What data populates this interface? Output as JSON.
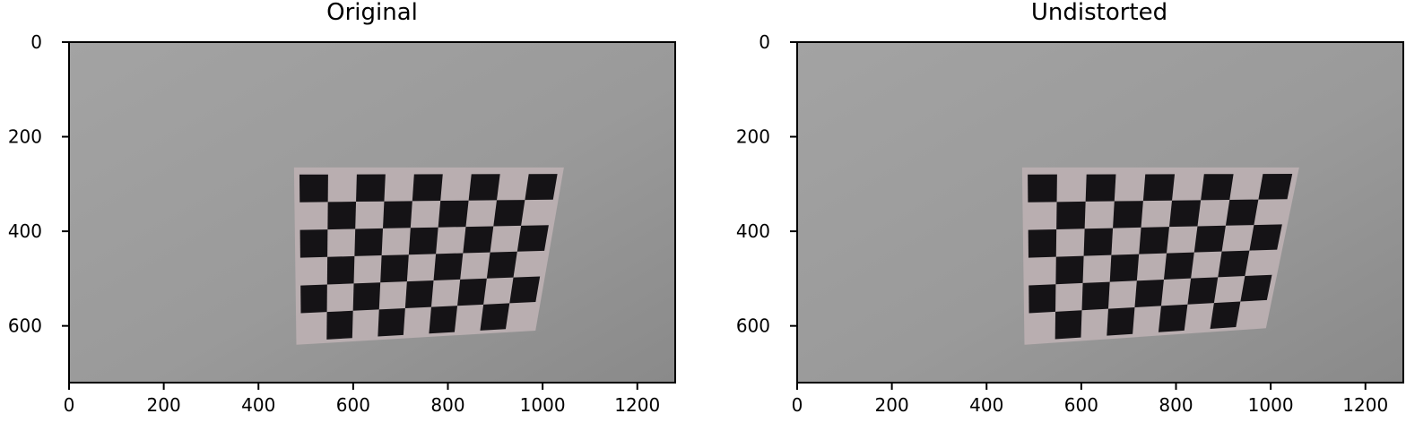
{
  "figure": {
    "panels": [
      {
        "id": "original",
        "title": "Original",
        "image_extent": {
          "x": [
            0,
            1280
          ],
          "y": [
            720,
            0
          ]
        },
        "x_ticks": [
          0,
          200,
          400,
          600,
          800,
          1000,
          1200
        ],
        "y_ticks": [
          0,
          200,
          400,
          600
        ],
        "board_corners_data": [
          [
            475,
            265
          ],
          [
            1045,
            265
          ],
          [
            985,
            610
          ],
          [
            480,
            640
          ]
        ]
      },
      {
        "id": "undistorted",
        "title": "Undistorted",
        "image_extent": {
          "x": [
            0,
            1280
          ],
          "y": [
            720,
            0
          ]
        },
        "x_ticks": [
          0,
          200,
          400,
          600,
          800,
          1000,
          1200
        ],
        "y_ticks": [
          0,
          200,
          400,
          600
        ],
        "board_corners_data": [
          [
            475,
            265
          ],
          [
            1060,
            265
          ],
          [
            990,
            605
          ],
          [
            480,
            640
          ]
        ]
      }
    ],
    "checkerboard": {
      "rows": 6,
      "cols": 9
    },
    "colors": {
      "wall": "#9c9c9c",
      "wall_dark": "#8e8e8e",
      "board_light": "#b9aeb0",
      "board_dark": "#151316",
      "axis": "#000000"
    }
  }
}
